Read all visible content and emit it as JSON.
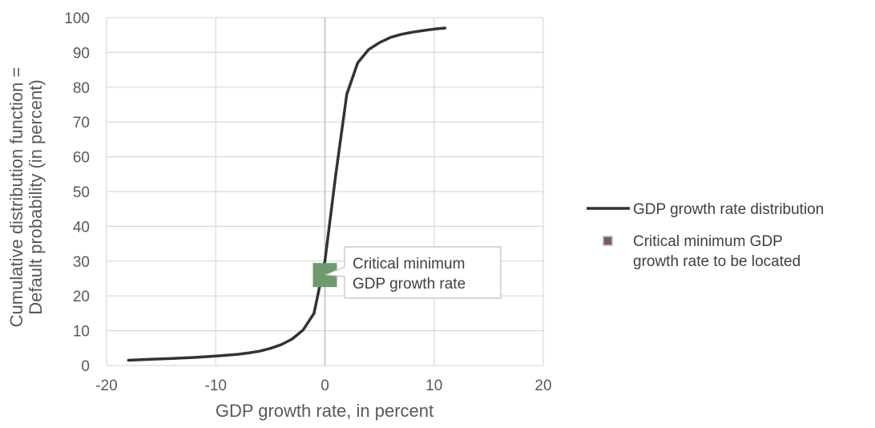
{
  "chart_data": {
    "type": "line",
    "xlabel": "GDP growth rate, in percent",
    "ylabel_line1": "Cumulative distribution function =",
    "ylabel_line2": "Default probability (in percent)",
    "xlim": [
      -20,
      20
    ],
    "ylim": [
      0,
      100
    ],
    "x_ticks": [
      -20,
      -10,
      0,
      10,
      20
    ],
    "y_ticks": [
      0,
      10,
      20,
      30,
      40,
      50,
      60,
      70,
      80,
      90,
      100
    ],
    "grid": true,
    "legend_position": "right",
    "series": [
      {
        "name": "GDP growth rate distribution",
        "color": "#333333",
        "x": [
          -18,
          -16,
          -14,
          -12,
          -10,
          -8,
          -7,
          -6,
          -5,
          -4,
          -3,
          -2,
          -1,
          0,
          1,
          2,
          3,
          4,
          5,
          6,
          7,
          8,
          9,
          10,
          11
        ],
        "y": [
          1.5,
          1.8,
          2.0,
          2.3,
          2.7,
          3.2,
          3.6,
          4.1,
          4.9,
          6.0,
          7.6,
          10.2,
          15.0,
          30.0,
          55.0,
          78.0,
          87.0,
          90.8,
          92.8,
          94.3,
          95.2,
          95.8,
          96.3,
          96.7,
          97.0
        ]
      },
      {
        "name": "Critical minimum GDP growth rate to be located",
        "type": "marker",
        "marker_color": "#6f9a6d",
        "legend_marker_color": "#8b5a3c",
        "x": 0,
        "y": 26
      }
    ],
    "annotation": {
      "line1": "Critical minimum",
      "line2": "GDP growth rate"
    },
    "legend": {
      "item1": "GDP growth rate distribution",
      "item2_line1": "Critical minimum GDP",
      "item2_line2": "growth rate to be located"
    }
  }
}
